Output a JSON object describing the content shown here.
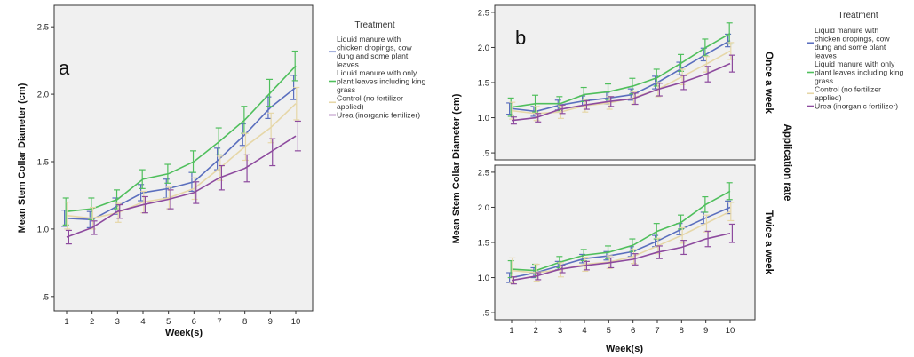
{
  "chart_data": {
    "type": "line",
    "legend": {
      "title": "Treatment",
      "placement": "right",
      "items": [
        {
          "lines": [
            "Liquid manure with",
            "chicken dropings, cow",
            "dung and some plant",
            "leaves"
          ]
        },
        {
          "lines": [
            "Liquid manure with only",
            "plant leaves including king",
            "grass"
          ]
        },
        {
          "lines": [
            "Control (no fertilizer",
            "applied)"
          ]
        },
        {
          "lines": [
            "Urea (inorganic fertilizer)"
          ]
        }
      ]
    },
    "series_colors": [
      "#5b6fbe",
      "#4fbf5c",
      "#e6d7a8",
      "#8d4a9e"
    ],
    "x": [
      1,
      2,
      3,
      4,
      5,
      6,
      7,
      8,
      9,
      10
    ],
    "x_ticks": [
      "1",
      "2",
      "3",
      "4",
      "5",
      "6",
      "7",
      "8",
      "9",
      "10"
    ],
    "y_ticks": [
      ".5",
      "1.0",
      "1.5",
      "2.0",
      "2.5"
    ],
    "y_tick_values": [
      0.5,
      1.0,
      1.5,
      2.0,
      2.5
    ],
    "xlabel": "Week(s)",
    "ylabel": "Mean Stem Collar Diameter (cm)",
    "grid": false,
    "error_bars": true,
    "panel_a": {
      "label": "a",
      "ylim": [
        0.4,
        2.6
      ],
      "panels": [
        {
          "series": [
            {
              "values": [
                1.08,
                1.07,
                1.17,
                1.27,
                1.3,
                1.35,
                1.52,
                1.7,
                1.9,
                2.05
              ],
              "err": [
                0.06,
                0.06,
                0.06,
                0.06,
                0.07,
                0.07,
                0.08,
                0.08,
                0.08,
                0.09
              ]
            },
            {
              "values": [
                1.13,
                1.15,
                1.22,
                1.37,
                1.41,
                1.5,
                1.65,
                1.81,
                2.01,
                2.21
              ],
              "err": [
                0.1,
                0.08,
                0.07,
                0.07,
                0.07,
                0.08,
                0.1,
                0.1,
                0.1,
                0.11
              ]
            },
            {
              "values": [
                1.1,
                1.08,
                1.12,
                1.2,
                1.23,
                1.3,
                1.45,
                1.61,
                1.75,
                1.93
              ],
              "err": [
                0.1,
                0.08,
                0.07,
                0.08,
                0.08,
                0.08,
                0.09,
                0.1,
                0.11,
                0.12
              ]
            },
            {
              "values": [
                0.94,
                1.01,
                1.13,
                1.18,
                1.22,
                1.27,
                1.38,
                1.45,
                1.57,
                1.69
              ],
              "err": [
                0.05,
                0.05,
                0.05,
                0.06,
                0.07,
                0.08,
                0.09,
                0.1,
                0.1,
                0.11
              ]
            }
          ]
        }
      ]
    },
    "panel_b": {
      "label": "b",
      "ylim": [
        0.4,
        2.6
      ],
      "facet_group_label": "Application rate",
      "panels": [
        {
          "facet_label": "Once a week",
          "series": [
            {
              "values": [
                1.13,
                1.09,
                1.18,
                1.24,
                1.28,
                1.33,
                1.5,
                1.7,
                1.9,
                2.1
              ],
              "err": [
                0.08,
                0.07,
                0.07,
                0.07,
                0.08,
                0.08,
                0.09,
                0.09,
                0.09,
                0.09
              ]
            },
            {
              "values": [
                1.15,
                1.2,
                1.2,
                1.33,
                1.37,
                1.45,
                1.57,
                1.78,
                2.0,
                2.2
              ],
              "err": [
                0.13,
                0.12,
                0.1,
                0.1,
                0.11,
                0.11,
                0.12,
                0.12,
                0.12,
                0.15
              ]
            },
            {
              "values": [
                1.1,
                1.06,
                1.08,
                1.17,
                1.21,
                1.28,
                1.4,
                1.58,
                1.76,
                1.95
              ],
              "err": [
                0.12,
                0.1,
                0.09,
                0.09,
                0.09,
                0.09,
                0.1,
                0.11,
                0.11,
                0.12
              ]
            },
            {
              "values": [
                0.96,
                1.0,
                1.12,
                1.18,
                1.23,
                1.27,
                1.4,
                1.5,
                1.62,
                1.77
              ],
              "err": [
                0.05,
                0.06,
                0.06,
                0.06,
                0.07,
                0.08,
                0.09,
                0.1,
                0.11,
                0.12
              ]
            }
          ]
        },
        {
          "facet_label": "Twice a week",
          "series": [
            {
              "values": [
                1.0,
                1.07,
                1.17,
                1.27,
                1.31,
                1.37,
                1.52,
                1.69,
                1.85,
                2.0
              ],
              "err": [
                0.07,
                0.07,
                0.06,
                0.06,
                0.06,
                0.07,
                0.08,
                0.08,
                0.08,
                0.09
              ]
            },
            {
              "values": [
                1.12,
                1.1,
                1.22,
                1.32,
                1.36,
                1.46,
                1.66,
                1.79,
                2.04,
                2.23
              ],
              "err": [
                0.12,
                0.09,
                0.08,
                0.08,
                0.09,
                0.09,
                0.11,
                0.1,
                0.11,
                0.12
              ]
            },
            {
              "values": [
                1.1,
                1.07,
                1.11,
                1.19,
                1.22,
                1.3,
                1.45,
                1.6,
                1.77,
                1.94
              ],
              "err": [
                0.18,
                0.12,
                0.1,
                0.1,
                0.09,
                0.1,
                0.11,
                0.11,
                0.12,
                0.13
              ]
            },
            {
              "values": [
                0.96,
                1.02,
                1.12,
                1.17,
                1.21,
                1.26,
                1.36,
                1.43,
                1.55,
                1.63
              ],
              "err": [
                0.05,
                0.05,
                0.05,
                0.06,
                0.07,
                0.08,
                0.09,
                0.1,
                0.11,
                0.13
              ]
            }
          ]
        }
      ]
    }
  }
}
